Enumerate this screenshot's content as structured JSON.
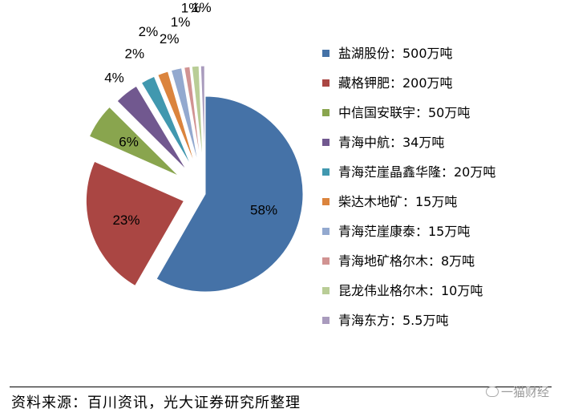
{
  "chart_data": {
    "type": "pie",
    "slices": [
      {
        "name": "盐湖股份：500万吨",
        "value": 500,
        "label": "58%",
        "color": "#4572a7"
      },
      {
        "name": "藏格钾肥：200万吨",
        "value": 200,
        "label": "23%",
        "color": "#aa4643"
      },
      {
        "name": "中信国安联宇：50万吨",
        "value": 50,
        "label": "6%",
        "color": "#89a54e"
      },
      {
        "name": "青海中航：34万吨",
        "value": 34,
        "label": "4%",
        "color": "#71588f"
      },
      {
        "name": "青海茫崖晶鑫华隆：20万吨",
        "value": 20,
        "label": "2%",
        "color": "#4198af"
      },
      {
        "name": "柴达木地矿：15万吨",
        "value": 15,
        "label": "2%",
        "color": "#db843d"
      },
      {
        "name": "青海茫崖康泰：15万吨",
        "value": 15,
        "label": "2%",
        "color": "#93a9cf"
      },
      {
        "name": "青海地矿格尔木：8万吨",
        "value": 8,
        "label": "1%",
        "color": "#d19392"
      },
      {
        "name": "昆龙伟业格尔木：10万吨",
        "value": 10,
        "label": "1%",
        "color": "#b9cd96"
      },
      {
        "name": "青海东方：5.5万吨",
        "value": 5.5,
        "label": "1%",
        "color": "#a99bbd"
      }
    ],
    "legend_position": "right"
  },
  "footer": {
    "source": "资料来源：百川资讯，光大证券研究所整理",
    "watermark": "一猫财经"
  }
}
